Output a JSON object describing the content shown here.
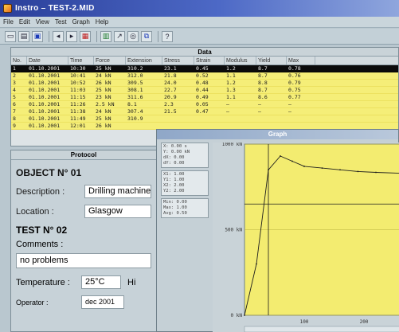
{
  "window": {
    "title": "Instro – TEST-2.MID"
  },
  "menu": [
    "File",
    "Edit",
    "View",
    "Test",
    "Graph",
    "Help"
  ],
  "toolbar": {
    "icons": [
      "new-icon",
      "open-icon",
      "save-icon",
      "print-icon",
      "arrow-left-icon",
      "arrow-right-icon",
      "table-icon",
      "graph-icon",
      "zoom-icon",
      "copy-icon",
      "help-icon"
    ]
  },
  "data_pane": {
    "title": "Data",
    "columns": [
      "No.",
      "Date",
      "Time",
      "Force",
      "Extension",
      "Stress",
      "Strain",
      "Modulus",
      "Yield",
      "Max"
    ],
    "rows": [
      [
        "1",
        "01.10.2001",
        "10:30",
        "25 kN",
        "310.2",
        "23.1",
        "0.45",
        "1.2",
        "8.7",
        "0.78"
      ],
      [
        "2",
        "01.10.2001",
        "10:41",
        "24 kN",
        "312.0",
        "21.8",
        "0.52",
        "1.1",
        "8.7",
        "0.76"
      ],
      [
        "3",
        "01.10.2001",
        "10:52",
        "26 kN",
        "309.5",
        "24.0",
        "0.48",
        "1.2",
        "8.8",
        "0.79"
      ],
      [
        "4",
        "01.10.2001",
        "11:03",
        "25 kN",
        "308.1",
        "22.7",
        "0.44",
        "1.3",
        "8.7",
        "0.75"
      ],
      [
        "5",
        "01.10.2001",
        "11:15",
        "23 kN",
        "311.6",
        "20.9",
        "0.49",
        "1.1",
        "8.6",
        "0.77"
      ],
      [
        "6",
        "01.10.2001",
        "11:26",
        "2.5 kN",
        "8.1",
        "2.3",
        "0.05",
        "—",
        "—",
        "—"
      ],
      [
        "7",
        "01.10.2001",
        "11:38",
        "24 kN",
        "307.4",
        "21.5",
        "0.47",
        "—",
        "—",
        "—"
      ],
      [
        "8",
        "01.10.2001",
        "11:49",
        "25 kN",
        "310.9",
        "",
        "",
        "",
        "",
        ""
      ],
      [
        "9",
        "01.10.2001",
        "12:01",
        "26 kN",
        "",
        "",
        "",
        "",
        "",
        ""
      ]
    ]
  },
  "protocol": {
    "title": "Protocol",
    "object_title": "OBJECT N° 01",
    "description_label": "Description :",
    "description_value": "Drilling machine",
    "location_label": "Location :",
    "location_value": "Glasgow",
    "test_title": "TEST N° 02",
    "comments_label": "Comments :",
    "comments_value": "no problems",
    "temperature_label": "Temperature :",
    "temperature_value": "25°C",
    "temperature_extra": "Hi",
    "operator_label": "Operator :",
    "operator_value": "dec 2001"
  },
  "graph": {
    "title": "Graph",
    "legend": [
      [
        "X: 0.00 s",
        "Y: 0.00 kN",
        "dX: 0.00",
        "dY: 0.00"
      ],
      [
        "X1: 1.00",
        "Y1: 1.00",
        "X2: 2.00",
        "Y2: 2.00"
      ],
      [
        "Min: 0.00",
        "Max: 1.00",
        "Avg: 0.50"
      ]
    ],
    "colors": {
      "plot_bg": "#f3ec70",
      "line": "#1c1c1c",
      "curve": "#1d1d1d"
    }
  },
  "chart_data": {
    "type": "line",
    "title": "",
    "xlabel": "",
    "ylabel": "",
    "yticks": [
      "1000 kN",
      "500 kN",
      "0 kN"
    ],
    "xticks": [
      "",
      "100",
      "200"
    ],
    "xlim": [
      0,
      260
    ],
    "ylim": [
      0,
      1000
    ],
    "series": [
      {
        "x": [
          0,
          20,
          40,
          60,
          80,
          100,
          130,
          160,
          190,
          220,
          260
        ],
        "y": [
          0,
          300,
          850,
          930,
          900,
          870,
          860,
          850,
          840,
          835,
          830
        ]
      }
    ],
    "cursor_x": 40,
    "ref_y": 650
  }
}
